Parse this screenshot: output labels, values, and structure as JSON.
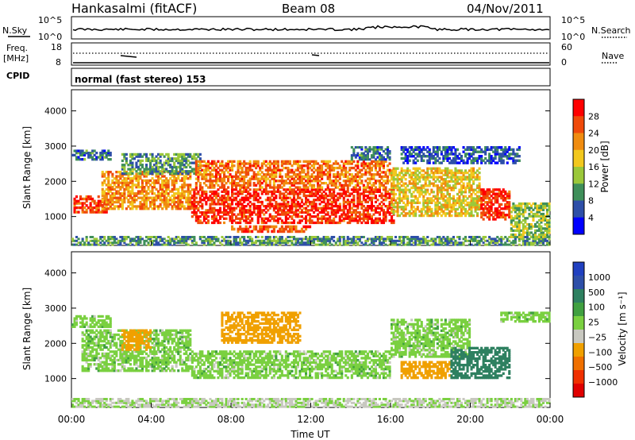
{
  "header": {
    "station": "Hankasalmi (fitACF)",
    "beam": "Beam 08",
    "date": "04/Nov/2011"
  },
  "status_panels": {
    "nsky_label": "N.Sky",
    "nsearch_label": "N.Search",
    "noise_ticks": [
      "10^5",
      "10^0"
    ],
    "freq_label": "Freq.",
    "freq_unit": "[MHz]",
    "freq_ticks": [
      "18",
      "8"
    ],
    "nave_label": "Nave",
    "nave_ticks": [
      "60",
      "0"
    ],
    "cpid_label": "CPID",
    "cpid_value": "normal (fast stereo) 153"
  },
  "colors": {
    "power_scale": [
      "#0000ff",
      "#2e4fa8",
      "#3f8f5a",
      "#9bc83a",
      "#f2c81e",
      "#f08c10",
      "#f04a0a",
      "#ff0000"
    ],
    "velocity_scale": [
      "#e00000",
      "#f03000",
      "#f07000",
      "#f0a000",
      "#c8c8c0",
      "#7ad040",
      "#40a040",
      "#2e8060",
      "#2e4fa8",
      "#2040c0"
    ]
  },
  "chart_data": [
    {
      "type": "heatmap",
      "title": "",
      "xlabel": "",
      "ylabel": "Slant Range [km]",
      "xlim": [
        "00:00",
        "00:00"
      ],
      "ylim": [
        180,
        4600
      ],
      "y_ticks": [
        "4000",
        "3000",
        "2000",
        "1000"
      ],
      "y_tick_values": [
        4000,
        3000,
        2000,
        1000
      ],
      "colorbar": {
        "label": "Power [dB]",
        "ticks": [
          "28",
          "24",
          "20",
          "16",
          "12",
          "8",
          "4"
        ],
        "range": [
          0,
          32
        ]
      },
      "echo_regions": [
        {
          "t0": 0.0,
          "t1": 2.0,
          "r0": 2600,
          "r1": 2900,
          "value": 8
        },
        {
          "t0": 0.1,
          "t1": 1.8,
          "r0": 1100,
          "r1": 1600,
          "value": 26
        },
        {
          "t0": 0.0,
          "t1": 24.0,
          "r0": 180,
          "r1": 450,
          "value": 10
        },
        {
          "t0": 1.5,
          "t1": 6.0,
          "r0": 1200,
          "r1": 2300,
          "value": 22
        },
        {
          "t0": 2.5,
          "t1": 6.5,
          "r0": 2200,
          "r1": 2800,
          "value": 10
        },
        {
          "t0": 6.0,
          "t1": 16.2,
          "r0": 800,
          "r1": 1800,
          "value": 28
        },
        {
          "t0": 6.2,
          "t1": 16.0,
          "r0": 1800,
          "r1": 2600,
          "value": 24
        },
        {
          "t0": 8.0,
          "t1": 12.0,
          "r0": 550,
          "r1": 750,
          "value": 26
        },
        {
          "t0": 14.0,
          "t1": 16.0,
          "r0": 2600,
          "r1": 3000,
          "value": 8
        },
        {
          "t0": 16.0,
          "t1": 20.5,
          "r0": 1000,
          "r1": 2400,
          "value": 18
        },
        {
          "t0": 16.5,
          "t1": 22.5,
          "r0": 2500,
          "r1": 3000,
          "value": 6
        },
        {
          "t0": 20.5,
          "t1": 22.0,
          "r0": 900,
          "r1": 1800,
          "value": 28
        },
        {
          "t0": 22.0,
          "t1": 24.0,
          "r0": 400,
          "r1": 1400,
          "value": 14
        }
      ]
    },
    {
      "type": "heatmap",
      "title": "",
      "xlabel": "Time UT",
      "ylabel": "Slant Range [km]",
      "x_ticks": [
        "00:00",
        "04:00",
        "08:00",
        "12:00",
        "16:00",
        "20:00",
        "00:00"
      ],
      "x_tick_values": [
        0,
        4,
        8,
        12,
        16,
        20,
        24
      ],
      "ylim": [
        180,
        4600
      ],
      "y_ticks": [
        "4000",
        "3000",
        "2000",
        "1000"
      ],
      "y_tick_values": [
        4000,
        3000,
        2000,
        1000
      ],
      "colorbar": {
        "label": "Velocity [m s⁻¹]",
        "ticks": [
          "1000",
          "500",
          "100",
          "25",
          "−25",
          "−100",
          "−500",
          "−1000"
        ]
      },
      "echo_regions": [
        {
          "t0": 0.0,
          "t1": 2.0,
          "r0": 2450,
          "r1": 2800,
          "value": 0
        },
        {
          "t0": 0.5,
          "t1": 6.0,
          "r0": 1200,
          "r1": 2400,
          "value": 0
        },
        {
          "t0": 2.5,
          "t1": 4.0,
          "r0": 1800,
          "r1": 2400,
          "value": -150
        },
        {
          "t0": 6.0,
          "t1": 16.0,
          "r0": 1000,
          "r1": 1800,
          "value": 0
        },
        {
          "t0": 7.5,
          "t1": 11.5,
          "r0": 2000,
          "r1": 2900,
          "value": -200
        },
        {
          "t0": 16.0,
          "t1": 20.0,
          "r0": 1600,
          "r1": 2700,
          "value": 0
        },
        {
          "t0": 16.5,
          "t1": 19.0,
          "r0": 1000,
          "r1": 1500,
          "value": -400
        },
        {
          "t0": 19.0,
          "t1": 22.0,
          "r0": 1000,
          "r1": 1900,
          "value": 300
        },
        {
          "t0": 21.5,
          "t1": 24.0,
          "r0": 2600,
          "r1": 2900,
          "value": 0
        },
        {
          "t0": 0.0,
          "t1": 24.0,
          "r0": 180,
          "r1": 450,
          "value": -30
        }
      ]
    }
  ]
}
